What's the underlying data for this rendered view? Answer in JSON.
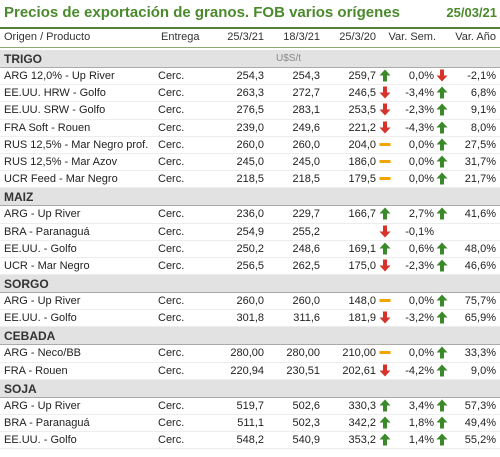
{
  "title": "Precios de exportación de granos. FOB varios orígenes",
  "date": "25/03/21",
  "columns": {
    "product": "Origen / Producto",
    "delivery": "Entrega",
    "d1": "25/3/21",
    "d2": "18/3/21",
    "d3": "25/3/20",
    "var_week": "Var. Sem.",
    "var_year": "Var. Año"
  },
  "colors": {
    "up": "#3a8a2c",
    "down": "#d8332a",
    "flat": "#f0a500",
    "title": "#4a8a2c"
  },
  "sections": [
    {
      "name": "TRIGO",
      "unit": "U$S/t",
      "rows": [
        {
          "name": "ARG 12,0% - Up River",
          "delivery": "Cerc.",
          "v1": "254,3",
          "v2": "254,3",
          "v3": "259,7",
          "week_icon": "arrow-up",
          "week": "0,0%",
          "year_icon": "arrow-down",
          "year": "-2,1%"
        },
        {
          "name": "EE.UU. HRW - Golfo",
          "delivery": "Cerc.",
          "v1": "263,3",
          "v2": "272,7",
          "v3": "246,5",
          "week_icon": "arrow-down",
          "week": "-3,4%",
          "year_icon": "arrow-up",
          "year": "6,8%"
        },
        {
          "name": "EE.UU. SRW - Golfo",
          "delivery": "Cerc.",
          "v1": "276,5",
          "v2": "283,1",
          "v3": "253,5",
          "week_icon": "arrow-down",
          "week": "-2,3%",
          "year_icon": "arrow-up",
          "year": "9,1%"
        },
        {
          "name": "FRA Soft - Rouen",
          "delivery": "Cerc.",
          "v1": "239,0",
          "v2": "249,6",
          "v3": "221,2",
          "week_icon": "arrow-down",
          "week": "-4,3%",
          "year_icon": "arrow-up",
          "year": "8,0%"
        },
        {
          "name": "RUS 12,5% - Mar Negro prof.",
          "delivery": "Cerc.",
          "v1": "260,0",
          "v2": "260,0",
          "v3": "204,0",
          "week_icon": "dash",
          "week": "0,0%",
          "year_icon": "arrow-up",
          "year": "27,5%"
        },
        {
          "name": "RUS 12,5% - Mar Azov",
          "delivery": "Cerc.",
          "v1": "245,0",
          "v2": "245,0",
          "v3": "186,0",
          "week_icon": "dash",
          "week": "0,0%",
          "year_icon": "arrow-up",
          "year": "31,7%"
        },
        {
          "name": "UCR Feed - Mar Negro",
          "delivery": "Cerc.",
          "v1": "218,5",
          "v2": "218,5",
          "v3": "179,5",
          "week_icon": "dash",
          "week": "0,0%",
          "year_icon": "arrow-up",
          "year": "21,7%"
        }
      ]
    },
    {
      "name": "MAIZ",
      "unit": "",
      "rows": [
        {
          "name": "ARG - Up River",
          "delivery": "Cerc.",
          "v1": "236,0",
          "v2": "229,7",
          "v3": "166,7",
          "week_icon": "arrow-up",
          "week": "2,7%",
          "year_icon": "arrow-up",
          "year": "41,6%"
        },
        {
          "name": "BRA - Paranaguá",
          "delivery": "Cerc.",
          "v1": "254,9",
          "v2": "255,2",
          "v3": "",
          "week_icon": "arrow-down",
          "week": "-0,1%",
          "year_icon": "",
          "year": ""
        },
        {
          "name": "EE.UU. - Golfo",
          "delivery": "Cerc.",
          "v1": "250,2",
          "v2": "248,6",
          "v3": "169,1",
          "week_icon": "arrow-up",
          "week": "0,6%",
          "year_icon": "arrow-up",
          "year": "48,0%"
        },
        {
          "name": "UCR - Mar Negro",
          "delivery": "Cerc.",
          "v1": "256,5",
          "v2": "262,5",
          "v3": "175,0",
          "week_icon": "arrow-down",
          "week": "-2,3%",
          "year_icon": "arrow-up",
          "year": "46,6%"
        }
      ]
    },
    {
      "name": "SORGO",
      "unit": "",
      "rows": [
        {
          "name": "ARG - Up River",
          "delivery": "Cerc.",
          "v1": "260,0",
          "v2": "260,0",
          "v3": "148,0",
          "week_icon": "dash",
          "week": "0,0%",
          "year_icon": "arrow-up",
          "year": "75,7%"
        },
        {
          "name": "EE.UU. - Golfo",
          "delivery": "Cerc.",
          "v1": "301,8",
          "v2": "311,6",
          "v3": "181,9",
          "week_icon": "arrow-down",
          "week": "-3,2%",
          "year_icon": "arrow-up",
          "year": "65,9%"
        }
      ]
    },
    {
      "name": "CEBADA",
      "unit": "",
      "rows": [
        {
          "name": "ARG - Neco/BB",
          "delivery": "Cerc.",
          "v1": "280,00",
          "v2": "280,00",
          "v3": "210,00",
          "week_icon": "dash",
          "week": "0,0%",
          "year_icon": "arrow-up",
          "year": "33,3%"
        },
        {
          "name": "FRA - Rouen",
          "delivery": "Cerc.",
          "v1": "220,94",
          "v2": "230,51",
          "v3": "202,61",
          "week_icon": "arrow-down",
          "week": "-4,2%",
          "year_icon": "arrow-up",
          "year": "9,0%"
        }
      ]
    },
    {
      "name": "SOJA",
      "unit": "",
      "rows": [
        {
          "name": "ARG - Up River",
          "delivery": "Cerc.",
          "v1": "519,7",
          "v2": "502,6",
          "v3": "330,3",
          "week_icon": "arrow-up",
          "week": "3,4%",
          "year_icon": "arrow-up",
          "year": "57,3%"
        },
        {
          "name": "BRA - Paranaguá",
          "delivery": "Cerc.",
          "v1": "511,1",
          "v2": "502,3",
          "v3": "342,2",
          "week_icon": "arrow-up",
          "week": "1,8%",
          "year_icon": "arrow-up",
          "year": "49,4%"
        },
        {
          "name": "EE.UU. - Golfo",
          "delivery": "Cerc.",
          "v1": "548,2",
          "v2": "540,9",
          "v3": "353,2",
          "week_icon": "arrow-up",
          "week": "1,4%",
          "year_icon": "arrow-up",
          "year": "55,2%"
        }
      ]
    }
  ]
}
